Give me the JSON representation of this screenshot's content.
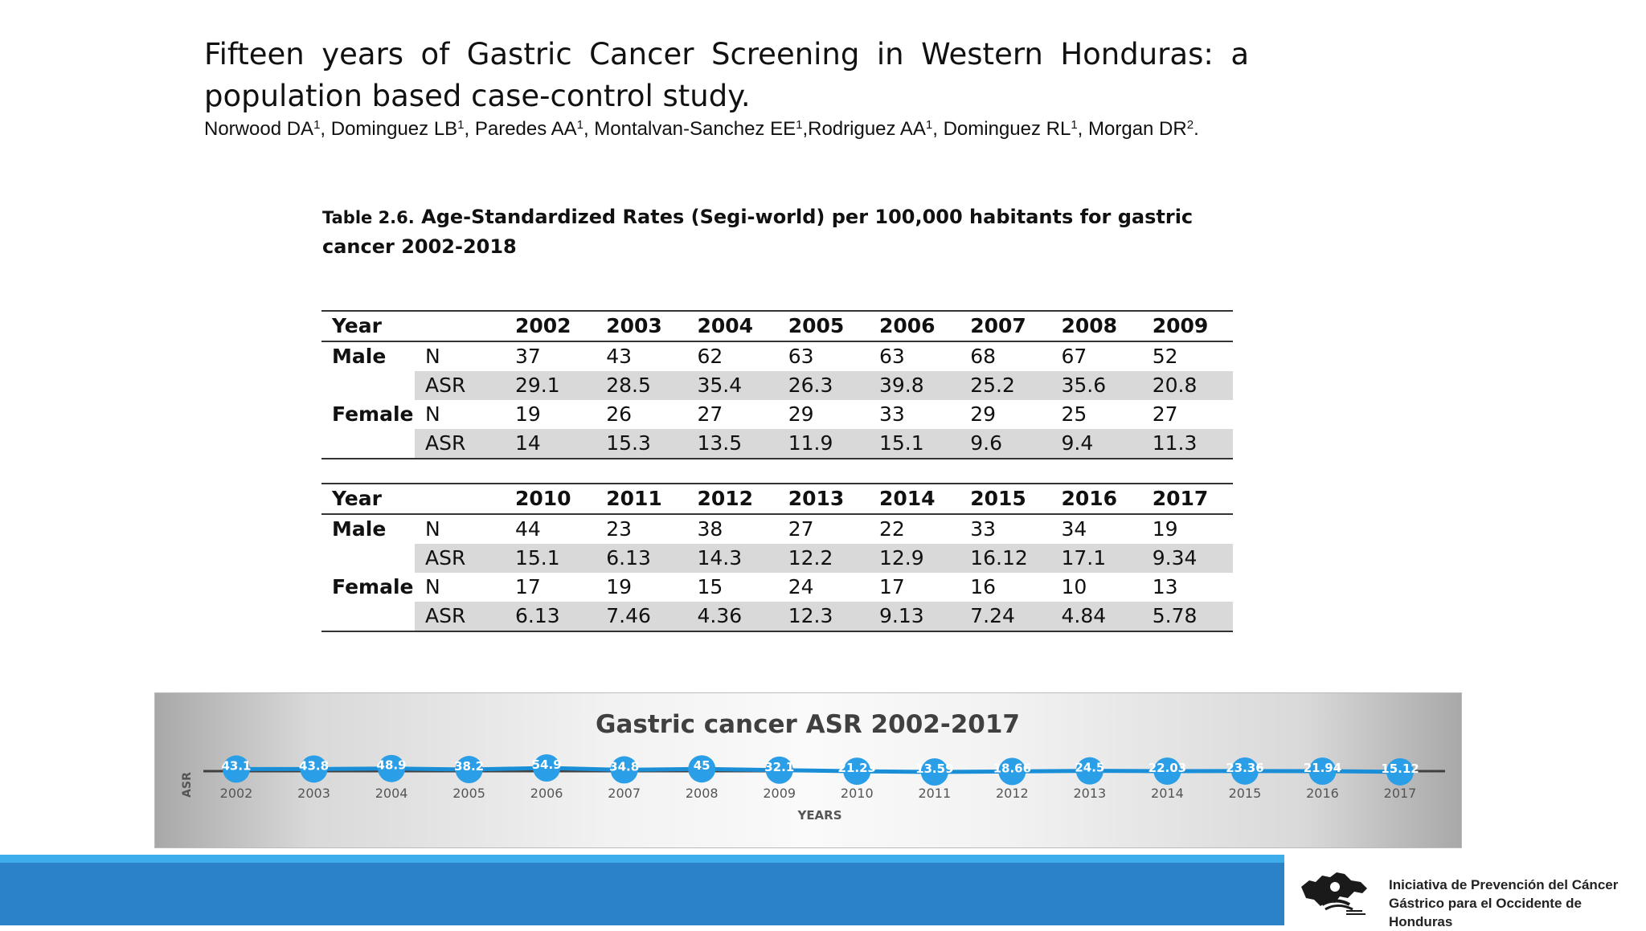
{
  "title": "Fifteen years of Gastric Cancer Screening in Western Honduras: a population based case-control study.",
  "authors": [
    {
      "name": "Norwood DA",
      "sup": "1",
      "sep": ", "
    },
    {
      "name": "Dominguez LB",
      "sup": "1",
      "sep": ", "
    },
    {
      "name": "Paredes AA",
      "sup": "1",
      "sep": ", "
    },
    {
      "name": "Montalvan-Sanchez EE",
      "sup": "1",
      "sep": ","
    },
    {
      "name": "Rodriguez AA",
      "sup": "1",
      "sep": ", "
    },
    {
      "name": "Dominguez RL",
      "sup": "1",
      "sep": ", "
    },
    {
      "name": "Morgan DR",
      "sup": "2",
      "sep": "."
    }
  ],
  "table_caption": {
    "label": "Table 2.6.",
    "text": " Age-Standardized Rates (Segi-world) per 100,000 habitants for gastric cancer 2002-2018"
  },
  "tables": [
    {
      "year_label": "Year",
      "years": [
        "2002",
        "2003",
        "2004",
        "2005",
        "2006",
        "2007",
        "2008",
        "2009"
      ],
      "rows": [
        {
          "group": "Male",
          "metric": "N",
          "values": [
            "37",
            "43",
            "62",
            "63",
            "63",
            "68",
            "67",
            "52"
          ]
        },
        {
          "group": "",
          "metric": "ASR",
          "values": [
            "29.1",
            "28.5",
            "35.4",
            "26.3",
            "39.8",
            "25.2",
            "35.6",
            "20.8"
          ]
        },
        {
          "group": "Female",
          "metric": "N",
          "values": [
            "19",
            "26",
            "27",
            "29",
            "33",
            "29",
            "25",
            "27"
          ]
        },
        {
          "group": "",
          "metric": "ASR",
          "values": [
            "14",
            "15.3",
            "13.5",
            "11.9",
            "15.1",
            "9.6",
            "9.4",
            "11.3"
          ]
        }
      ]
    },
    {
      "year_label": "Year",
      "years": [
        "2010",
        "2011",
        "2012",
        "2013",
        "2014",
        "2015",
        "2016",
        "2017"
      ],
      "rows": [
        {
          "group": "Male",
          "metric": "N",
          "values": [
            "44",
            "23",
            "38",
            "27",
            "22",
            "33",
            "34",
            "19"
          ]
        },
        {
          "group": "",
          "metric": "ASR",
          "values": [
            "15.1",
            "6.13",
            "14.3",
            "12.2",
            "12.9",
            "16.12",
            "17.1",
            "9.34"
          ]
        },
        {
          "group": "Female",
          "metric": "N",
          "values": [
            "17",
            "19",
            "15",
            "24",
            "17",
            "16",
            "10",
            "13"
          ]
        },
        {
          "group": "",
          "metric": "ASR",
          "values": [
            "6.13",
            "7.46",
            "4.36",
            "12.3",
            "9.13",
            "7.24",
            "4.84",
            "5.78"
          ]
        }
      ]
    }
  ],
  "chart_data": {
    "type": "line",
    "title": "Gastric cancer ASR 2002-2017",
    "xlabel": "YEARS",
    "ylabel": "ASR",
    "x": [
      "2002",
      "2003",
      "2004",
      "2005",
      "2006",
      "2007",
      "2008",
      "2009",
      "2010",
      "2011",
      "2012",
      "2013",
      "2014",
      "2015",
      "2016",
      "2017"
    ],
    "series": [
      {
        "values": [
          43.1,
          43.8,
          48.9,
          38.2,
          54.9,
          34.8,
          45,
          32.1,
          21.23,
          13.59,
          18.66,
          24.5,
          22.03,
          23.36,
          21.94,
          15.12
        ]
      }
    ],
    "data_labels": [
      "43.1",
      "43.8",
      "48.9",
      "38.2",
      "54.9",
      "34.8",
      "45",
      "32.1",
      "21.23",
      "13.59",
      "18.66",
      "24.5",
      "22.03",
      "23.36",
      "21.94",
      "15.12"
    ],
    "grid": false,
    "legend": "none",
    "colors": {
      "marker": "#2a9ee6",
      "line": "#1a8fd8",
      "axis": "#404040",
      "label": "#555555"
    }
  },
  "footer": {
    "org_line1": "Iniciativa de Prevención del Cáncer",
    "org_line2": "Gástrico para el Occidente de Honduras",
    "colors": {
      "bar": "#2b82c6",
      "bar_top": "#3daee9"
    }
  }
}
